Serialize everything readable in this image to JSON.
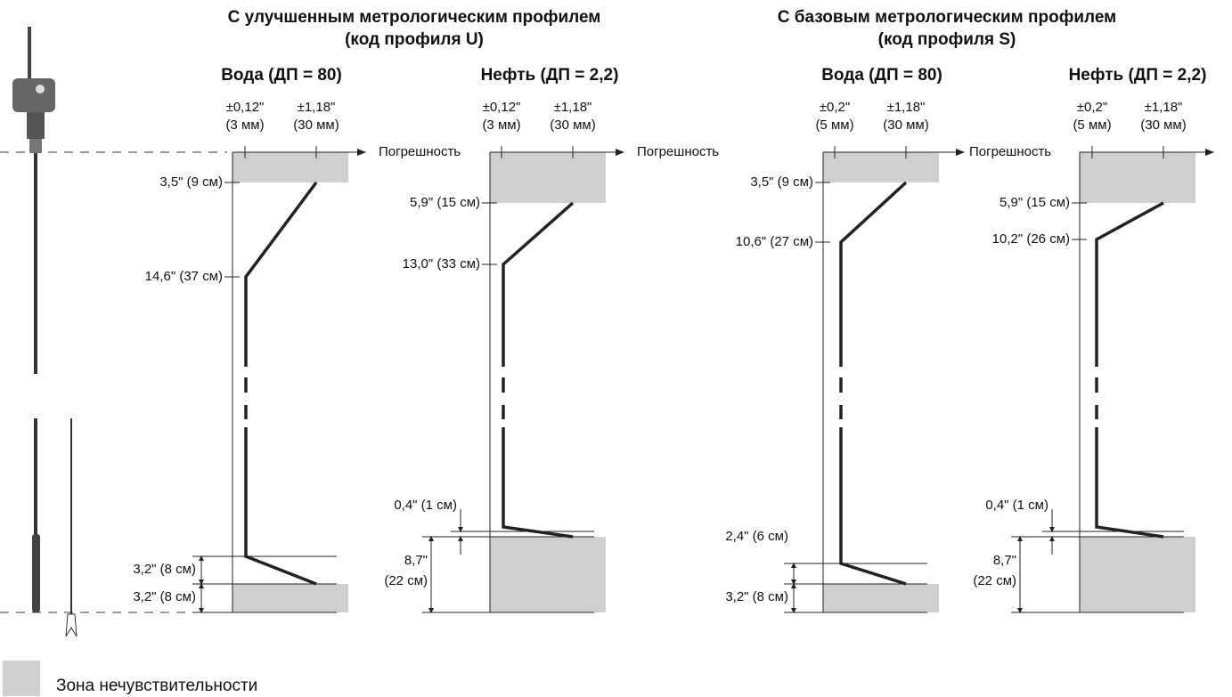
{
  "groups": [
    {
      "title": [
        "С улучшенным метрологическим профилем",
        "(код профиля U)"
      ]
    },
    {
      "title": [
        "С базовым метрологическим профилем",
        "(код профиля S)"
      ]
    }
  ],
  "panels": [
    {
      "title": "Вода (ДП = 80)",
      "ticks": [
        [
          "±0,12\"",
          "(3 мм)"
        ],
        [
          "±1,18\"",
          "(30 мм)"
        ]
      ],
      "axis_label": "Погрешность",
      "dims": [
        "3,5\" (9 см)",
        "14,6\" (37 см)",
        "3,2\" (8 см)",
        "3,2\" (8 см)"
      ]
    },
    {
      "title": "Нефть (ДП = 2,2)",
      "ticks": [
        [
          "±0,12\"",
          "(3 мм)"
        ],
        [
          "±1,18\"",
          "(30 мм)"
        ]
      ],
      "axis_label": "Погрешность",
      "dims": [
        "5,9\" (15 см)",
        "13,0\" (33 см)",
        "0,4\" (1 см)",
        "8,7\"",
        "(22 см)"
      ]
    },
    {
      "title": "Вода (ДП = 80)",
      "ticks": [
        [
          "±0,2\"",
          "(5 мм)"
        ],
        [
          "±1,18\"",
          "(30 мм)"
        ]
      ],
      "axis_label": "Погрешность",
      "dims": [
        "3,5\" (9 см)",
        "10,6\" (27 см)",
        "2,4\" (6 см)",
        "3,2\" (8 см)"
      ]
    },
    {
      "title": "Нефть (ДП = 2,2)",
      "ticks": [
        [
          "±0,2\"",
          "(5 мм)"
        ],
        [
          "±1,18\"",
          "(30 мм)"
        ]
      ],
      "dims": [
        "5,9\" (15 см)",
        "10,2\" (26 см)",
        "0,4\" (1 см)",
        "8,7\"",
        "(22 см)"
      ]
    }
  ],
  "legend": "Зона нечувствительности"
}
